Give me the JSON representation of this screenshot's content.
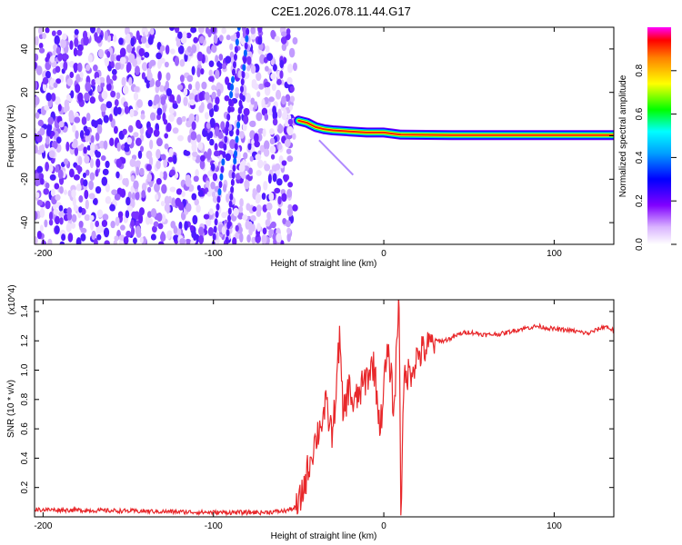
{
  "figure": {
    "title": "C2E1.2026.078.11.44.G17"
  },
  "chart_data": [
    {
      "type": "heatmap",
      "xlabel": "Height of straight line (km)",
      "ylabel": "Frequency (Hz)",
      "xlim": [
        -205,
        135
      ],
      "ylim": [
        -50,
        50
      ],
      "xticks": [
        -200,
        -100,
        0,
        100
      ],
      "yticks": [
        -40,
        -20,
        0,
        20,
        40
      ],
      "grid": false,
      "colormap": "rainbow (white-violet-blue-cyan-green-yellow-red-magenta)",
      "colorbar": {
        "label": "Normalized spectral amplitude",
        "range": [
          0,
          1
        ],
        "ticks": [
          "0.0",
          "0.2",
          "0.4",
          "0.6",
          "0.8"
        ]
      },
      "features": [
        {
          "name": "scattered noise",
          "x_range": [
            -205,
            -52
          ],
          "y_range": [
            -50,
            50
          ],
          "amplitude": "low (0.0-0.25)"
        },
        {
          "name": "tone track",
          "points": [
            [
              -50,
              7
            ],
            [
              -45,
              6
            ],
            [
              -40,
              4
            ],
            [
              -35,
              3
            ],
            [
              -30,
              2.5
            ],
            [
              -20,
              2
            ],
            [
              -10,
              1.5
            ],
            [
              0,
              1.5
            ],
            [
              5,
              1
            ],
            [
              10,
              0.5
            ],
            [
              40,
              0.3
            ],
            [
              135,
              0.3
            ]
          ],
          "amplitude": "high (0.8-1.0)"
        }
      ]
    },
    {
      "type": "line",
      "xlabel": "Height of straight line (km)",
      "ylabel": "SNR (10 * v/v)",
      "y_multiplier": "(x10^4)",
      "xlim": [
        -205,
        135
      ],
      "ylim": [
        0,
        1.48
      ],
      "xticks": [
        -200,
        -100,
        0,
        100
      ],
      "yticks": [
        0.2,
        0.4,
        0.6,
        0.8,
        1.0,
        1.2,
        1.4
      ],
      "grid": false,
      "color": "#e8282b",
      "series": [
        {
          "x": [
            -205,
            -150,
            -100,
            -70,
            -58,
            -50,
            -46,
            -42,
            -38,
            -34,
            -30,
            -26,
            -24,
            -20,
            -18,
            -14,
            -10,
            -6,
            -2,
            0,
            2,
            4,
            6,
            8,
            9,
            10,
            12,
            16,
            20,
            25,
            30,
            35,
            40,
            45,
            50,
            55,
            60,
            70,
            80,
            90,
            100,
            110,
            120,
            130,
            135
          ],
          "y": [
            0.05,
            0.04,
            0.03,
            0.03,
            0.04,
            0.07,
            0.25,
            0.45,
            0.6,
            0.75,
            0.55,
            1.22,
            0.7,
            0.9,
            0.75,
            0.85,
            0.95,
            1.05,
            0.6,
            0.9,
            1.1,
            1.0,
            0.7,
            1.3,
            1.48,
            0.05,
            0.95,
            1.0,
            1.1,
            1.15,
            1.2,
            1.2,
            1.22,
            1.25,
            1.26,
            1.25,
            1.24,
            1.25,
            1.28,
            1.3,
            1.28,
            1.27,
            1.25,
            1.3,
            1.27
          ]
        }
      ]
    }
  ]
}
